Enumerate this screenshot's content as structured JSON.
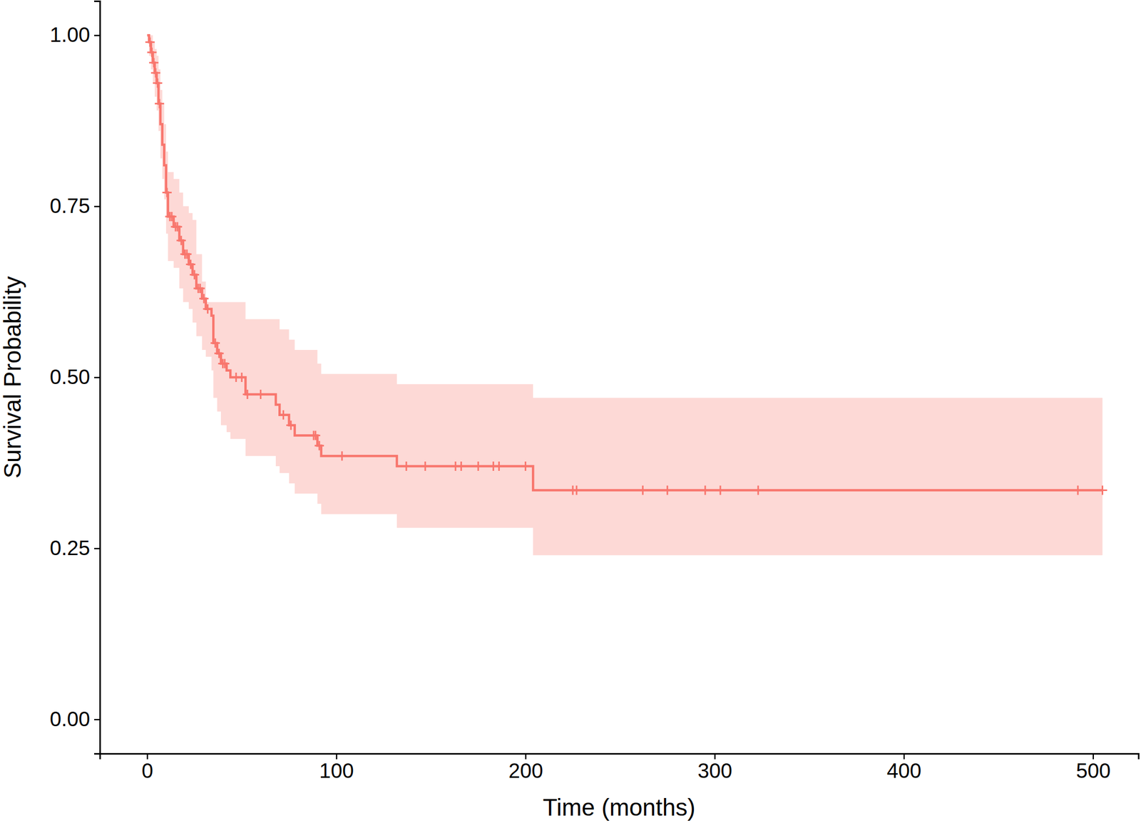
{
  "chart_data": {
    "type": "line",
    "line_style": "step",
    "marker": "plus",
    "color": "#F8766D",
    "x_label": "Time (months)",
    "y_label": "Survival Probability",
    "xlim": [
      -25,
      524
    ],
    "ylim": [
      -0.05,
      1.05
    ],
    "xticks": [
      0,
      100,
      200,
      300,
      400,
      500
    ],
    "yticks": [
      {
        "value": 0,
        "label": "0.00"
      },
      {
        "value": 0.25,
        "label": "0.25"
      },
      {
        "value": 0.5,
        "label": "0.50"
      },
      {
        "value": 0.75,
        "label": "0.75"
      },
      {
        "value": 1,
        "label": "1.00"
      }
    ],
    "x": [
      0,
      1,
      2,
      3,
      4,
      5,
      6,
      7,
      8,
      9,
      10,
      11,
      14,
      17,
      19,
      22,
      24,
      26,
      29,
      31,
      34,
      35,
      37,
      39,
      42,
      44,
      52,
      68,
      70,
      75,
      78,
      90,
      92,
      132,
      204,
      505
    ],
    "values": [
      1.0,
      0.99,
      0.975,
      0.96,
      0.945,
      0.93,
      0.9,
      0.87,
      0.84,
      0.81,
      0.77,
      0.735,
      0.72,
      0.7,
      0.68,
      0.665,
      0.65,
      0.63,
      0.615,
      0.6,
      0.59,
      0.55,
      0.535,
      0.52,
      0.51,
      0.5,
      0.475,
      0.46,
      0.445,
      0.43,
      0.415,
      0.4,
      0.385,
      0.37,
      0.335,
      0.335
    ],
    "lower": [
      1.0,
      0.97,
      0.95,
      0.93,
      0.91,
      0.89,
      0.86,
      0.82,
      0.79,
      0.76,
      0.71,
      0.67,
      0.66,
      0.63,
      0.61,
      0.6,
      0.58,
      0.56,
      0.54,
      0.53,
      0.51,
      0.47,
      0.45,
      0.43,
      0.42,
      0.41,
      0.385,
      0.37,
      0.36,
      0.345,
      0.33,
      0.315,
      0.3,
      0.28,
      0.24,
      0.24
    ],
    "upper": [
      1.0,
      1.0,
      1.0,
      0.99,
      0.98,
      0.97,
      0.95,
      0.92,
      0.9,
      0.87,
      0.83,
      0.8,
      0.79,
      0.77,
      0.75,
      0.74,
      0.73,
      0.68,
      0.64,
      0.61,
      0.61,
      0.61,
      0.61,
      0.61,
      0.61,
      0.61,
      0.585,
      0.585,
      0.57,
      0.555,
      0.54,
      0.52,
      0.505,
      0.49,
      0.47,
      0.47
    ],
    "censored": {
      "x": [
        1.5,
        2.5,
        3.5,
        4.5,
        5.5,
        6.5,
        10.5,
        12,
        13,
        15,
        16,
        18,
        20,
        21,
        23,
        25,
        27,
        28,
        30,
        32,
        36,
        38,
        40,
        41,
        47,
        50,
        53,
        60,
        72,
        76,
        88,
        89,
        91,
        103,
        137,
        147,
        163,
        166,
        175,
        183,
        186,
        200,
        225,
        227,
        262,
        275,
        295,
        303,
        323,
        492,
        505
      ],
      "values": [
        0.99,
        0.975,
        0.96,
        0.945,
        0.93,
        0.9,
        0.77,
        0.735,
        0.735,
        0.72,
        0.72,
        0.7,
        0.68,
        0.68,
        0.665,
        0.65,
        0.63,
        0.63,
        0.615,
        0.6,
        0.55,
        0.535,
        0.52,
        0.52,
        0.5,
        0.5,
        0.475,
        0.475,
        0.445,
        0.43,
        0.415,
        0.415,
        0.4,
        0.385,
        0.37,
        0.37,
        0.37,
        0.37,
        0.37,
        0.37,
        0.37,
        0.37,
        0.335,
        0.335,
        0.335,
        0.335,
        0.335,
        0.335,
        0.335,
        0.335,
        0.335
      ]
    }
  }
}
